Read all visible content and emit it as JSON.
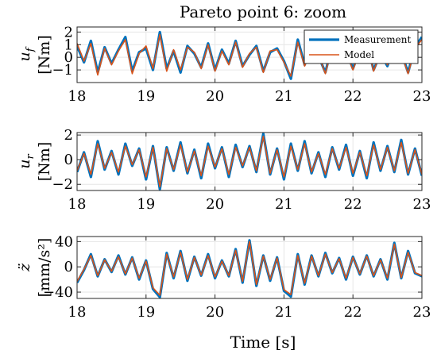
{
  "title": "Pareto point 6: zoom",
  "xlabel": "Time [s]",
  "legend": {
    "measurement": "Measurement",
    "model": "Model"
  },
  "colors": {
    "measurement": "#0072BD",
    "model": "#D95319",
    "grid": "#e6e6e6",
    "axis": "#262626"
  },
  "chart_data": [
    {
      "type": "line",
      "ylabel_sym": "u",
      "ylabel_sub": "f",
      "ylabel_unit": "[Nm]",
      "xlim": [
        18,
        23
      ],
      "ylim": [
        -2,
        2.4
      ],
      "xticks": [
        18,
        19,
        20,
        21,
        22,
        23
      ],
      "yticks": [
        -1,
        0,
        1,
        2
      ],
      "legend": true,
      "series": [
        {
          "name": "Measurement",
          "x": [
            18.0,
            18.1,
            18.2,
            18.3,
            18.4,
            18.5,
            18.6,
            18.7,
            18.8,
            18.9,
            19.0,
            19.1,
            19.2,
            19.3,
            19.4,
            19.5,
            19.6,
            19.7,
            19.8,
            19.9,
            20.0,
            20.1,
            20.2,
            20.3,
            20.4,
            20.5,
            20.6,
            20.7,
            20.8,
            20.9,
            21.0,
            21.1,
            21.2,
            21.3,
            21.4,
            21.5,
            21.6,
            21.7,
            21.8,
            21.9,
            22.0,
            22.1,
            22.2,
            22.3,
            22.4,
            22.5,
            22.6,
            22.7,
            22.8,
            22.9,
            23.0
          ],
          "y": [
            0.9,
            -0.4,
            1.3,
            -1.2,
            0.8,
            -0.5,
            0.6,
            1.6,
            -1.1,
            0.4,
            0.7,
            -1.0,
            2.0,
            -0.9,
            0.5,
            -1.2,
            0.9,
            0.3,
            -0.8,
            1.1,
            -1.0,
            0.6,
            -0.5,
            1.3,
            -0.7,
            0.2,
            0.9,
            -1.1,
            0.4,
            0.7,
            -0.3,
            -1.7,
            1.4,
            -0.6,
            0.8,
            0.1,
            -1.2,
            1.0,
            -0.4,
            0.5,
            -0.9,
            0.6,
            1.2,
            -1.0,
            0.3,
            -0.7,
            1.0,
            0.4,
            -1.2,
            0.8,
            1.6
          ]
        },
        {
          "name": "Model",
          "x": [
            18.0,
            18.1,
            18.2,
            18.3,
            18.4,
            18.5,
            18.6,
            18.7,
            18.8,
            18.9,
            19.0,
            19.1,
            19.2,
            19.3,
            19.4,
            19.5,
            19.6,
            19.7,
            19.8,
            19.9,
            20.0,
            20.1,
            20.2,
            20.3,
            20.4,
            20.5,
            20.6,
            20.7,
            20.8,
            20.9,
            21.0,
            21.1,
            21.2,
            21.3,
            21.4,
            21.5,
            21.6,
            21.7,
            21.8,
            21.9,
            22.0,
            22.1,
            22.2,
            22.3,
            22.4,
            22.5,
            22.6,
            22.7,
            22.8,
            22.9,
            23.0
          ],
          "y": [
            1.1,
            -0.3,
            1.1,
            -1.4,
            0.7,
            -0.6,
            0.5,
            1.4,
            -1.3,
            0.3,
            0.9,
            -0.9,
            1.8,
            -1.1,
            0.6,
            -1.0,
            0.8,
            0.4,
            -0.9,
            1.0,
            -1.1,
            0.5,
            -0.6,
            1.2,
            -0.8,
            0.3,
            0.8,
            -1.2,
            0.5,
            0.6,
            -0.4,
            -1.5,
            1.2,
            -0.7,
            0.7,
            0.2,
            -1.3,
            0.9,
            -0.3,
            0.4,
            -1.0,
            0.5,
            1.1,
            -1.1,
            0.4,
            -0.6,
            0.9,
            0.3,
            -1.3,
            0.7,
            1.4
          ]
        }
      ]
    },
    {
      "type": "line",
      "ylabel_sym": "u",
      "ylabel_sub": "r",
      "ylabel_unit": "[Nm]",
      "xlim": [
        18,
        23
      ],
      "ylim": [
        -2.5,
        2.2
      ],
      "xticks": [
        18,
        19,
        20,
        21,
        22,
        23
      ],
      "yticks": [
        -2,
        0,
        2
      ],
      "legend": false,
      "series": [
        {
          "name": "Measurement",
          "x": [
            18.0,
            18.1,
            18.2,
            18.3,
            18.4,
            18.5,
            18.6,
            18.7,
            18.8,
            18.9,
            19.0,
            19.1,
            19.2,
            19.3,
            19.4,
            19.5,
            19.6,
            19.7,
            19.8,
            19.9,
            20.0,
            20.1,
            20.2,
            20.3,
            20.4,
            20.5,
            20.6,
            20.7,
            20.8,
            20.9,
            21.0,
            21.1,
            21.2,
            21.3,
            21.4,
            21.5,
            21.6,
            21.7,
            21.8,
            21.9,
            22.0,
            22.1,
            22.2,
            22.3,
            22.4,
            22.5,
            22.6,
            22.7,
            22.8,
            22.9,
            23.0
          ],
          "y": [
            -1.0,
            0.6,
            -1.4,
            1.5,
            -0.8,
            0.7,
            -1.2,
            1.3,
            -0.5,
            0.9,
            -1.6,
            1.1,
            -2.4,
            1.0,
            -0.9,
            1.4,
            -1.1,
            0.8,
            -1.5,
            1.3,
            -0.7,
            1.0,
            -1.4,
            1.2,
            -0.6,
            1.1,
            -1.0,
            2.1,
            -1.2,
            0.9,
            -1.6,
            1.3,
            -0.9,
            1.5,
            -1.1,
            0.6,
            -1.4,
            1.0,
            -0.8,
            1.2,
            -1.3,
            0.7,
            -1.5,
            1.4,
            -0.9,
            1.1,
            -1.0,
            1.6,
            -1.2,
            0.9,
            -1.3
          ]
        },
        {
          "name": "Model",
          "x": [
            18.0,
            18.1,
            18.2,
            18.3,
            18.4,
            18.5,
            18.6,
            18.7,
            18.8,
            18.9,
            19.0,
            19.1,
            19.2,
            19.3,
            19.4,
            19.5,
            19.6,
            19.7,
            19.8,
            19.9,
            20.0,
            20.1,
            20.2,
            20.3,
            20.4,
            20.5,
            20.6,
            20.7,
            20.8,
            20.9,
            21.0,
            21.1,
            21.2,
            21.3,
            21.4,
            21.5,
            21.6,
            21.7,
            21.8,
            21.9,
            22.0,
            22.1,
            22.2,
            22.3,
            22.4,
            22.5,
            22.6,
            22.7,
            22.8,
            22.9,
            23.0
          ],
          "y": [
            -0.9,
            0.5,
            -1.2,
            1.3,
            -0.7,
            0.6,
            -1.0,
            1.1,
            -0.4,
            0.8,
            -1.4,
            1.0,
            -2.2,
            0.9,
            -0.8,
            1.2,
            -1.0,
            0.7,
            -1.3,
            1.1,
            -0.6,
            0.9,
            -1.2,
            1.0,
            -0.5,
            1.0,
            -0.9,
            1.9,
            -1.1,
            0.8,
            -1.4,
            1.1,
            -0.8,
            1.3,
            -1.0,
            0.5,
            -1.2,
            0.9,
            -0.7,
            1.0,
            -1.1,
            0.6,
            -1.3,
            1.2,
            -0.8,
            1.0,
            -0.9,
            1.4,
            -1.1,
            0.8,
            -1.2
          ]
        }
      ]
    },
    {
      "type": "line",
      "ylabel_sym": "z̈",
      "ylabel_sub": "",
      "ylabel_unit": "[mm/s²]",
      "xlim": [
        18,
        23
      ],
      "ylim": [
        -50,
        48
      ],
      "xticks": [
        18,
        19,
        20,
        21,
        22,
        23
      ],
      "yticks": [
        -40,
        0,
        40
      ],
      "legend": false,
      "series": [
        {
          "name": "Measurement",
          "x": [
            18.0,
            18.1,
            18.2,
            18.3,
            18.4,
            18.5,
            18.6,
            18.7,
            18.8,
            18.9,
            19.0,
            19.1,
            19.2,
            19.3,
            19.4,
            19.5,
            19.6,
            19.7,
            19.8,
            19.9,
            20.0,
            20.1,
            20.2,
            20.3,
            20.4,
            20.5,
            20.6,
            20.7,
            20.8,
            20.9,
            21.0,
            21.1,
            21.2,
            21.3,
            21.4,
            21.5,
            21.6,
            21.7,
            21.8,
            21.9,
            22.0,
            22.1,
            22.2,
            22.3,
            22.4,
            22.5,
            22.6,
            22.7,
            22.8,
            22.9,
            23.0
          ],
          "y": [
            -25,
            -5,
            20,
            -15,
            12,
            -8,
            18,
            -12,
            15,
            -20,
            10,
            -35,
            -48,
            22,
            -18,
            25,
            -22,
            16,
            -14,
            20,
            -18,
            10,
            -15,
            28,
            -25,
            42,
            -30,
            18,
            -22,
            15,
            -38,
            -47,
            20,
            -28,
            18,
            -15,
            22,
            -10,
            14,
            -20,
            16,
            -12,
            18,
            -15,
            12,
            -20,
            38,
            -18,
            25,
            -10,
            -15
          ]
        },
        {
          "name": "Model",
          "x": [
            18.0,
            18.1,
            18.2,
            18.3,
            18.4,
            18.5,
            18.6,
            18.7,
            18.8,
            18.9,
            19.0,
            19.1,
            19.2,
            19.3,
            19.4,
            19.5,
            19.6,
            19.7,
            19.8,
            19.9,
            20.0,
            20.1,
            20.2,
            20.3,
            20.4,
            20.5,
            20.6,
            20.7,
            20.8,
            20.9,
            21.0,
            21.1,
            21.2,
            21.3,
            21.4,
            21.5,
            21.6,
            21.7,
            21.8,
            21.9,
            22.0,
            22.1,
            22.2,
            22.3,
            22.4,
            22.5,
            22.6,
            22.7,
            22.8,
            22.9,
            23.0
          ],
          "y": [
            -23,
            -4,
            18,
            -14,
            11,
            -7,
            16,
            -11,
            14,
            -18,
            9,
            -33,
            -45,
            20,
            -16,
            23,
            -20,
            15,
            -13,
            18,
            -16,
            9,
            -14,
            26,
            -23,
            40,
            -28,
            17,
            -20,
            14,
            -36,
            -44,
            18,
            -26,
            17,
            -14,
            20,
            -9,
            13,
            -18,
            15,
            -11,
            17,
            -14,
            11,
            -18,
            36,
            -17,
            23,
            -9,
            -14
          ]
        }
      ]
    }
  ]
}
